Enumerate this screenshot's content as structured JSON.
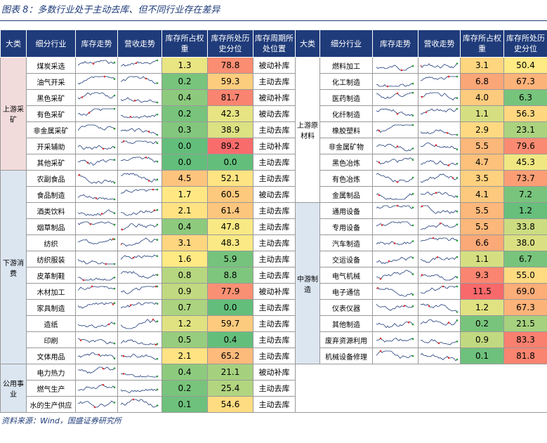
{
  "title": "图表 8：多数行业处于主动去库、但不同行业存在差异",
  "headers_left": [
    "大类",
    "细分行业",
    "库存走势",
    "营收走势",
    "库存所占权重",
    "库存所处历史分位",
    "库存周期所处位置"
  ],
  "headers_right": [
    "大类",
    "细分行业",
    "库存走势",
    "营收走势",
    "库存所占权重",
    "库存所处历史分位"
  ],
  "left_groups": [
    {
      "name": "上游采矿",
      "rows": [
        [
          "煤炭采选",
          "1.3",
          "78.8",
          "被动补库"
        ],
        [
          "油气开采",
          "0.2",
          "59.3",
          "主动去库"
        ],
        [
          "黑色采矿",
          "0.4",
          "81.7",
          "被动补库"
        ],
        [
          "有色采矿",
          "0.2",
          "42.3",
          "被动去库"
        ],
        [
          "非金属采矿",
          "0.3",
          "38.9",
          "主动去库"
        ],
        [
          "开采辅助",
          "0.0",
          "89.2",
          "主动补库"
        ],
        [
          "其他采矿",
          "0.0",
          "0.0",
          "主动去库"
        ]
      ]
    },
    {
      "name": "下游消费",
      "rows": [
        [
          "农副食品",
          "4.5",
          "52.1",
          "主动去库"
        ],
        [
          "食品制造",
          "1.7",
          "60.5",
          "被动去库"
        ],
        [
          "酒类饮料",
          "2.1",
          "61.4",
          "主动去库"
        ],
        [
          "烟草制品",
          "0.4",
          "47.8",
          "主动去库"
        ],
        [
          "纺织",
          "3.1",
          "48.3",
          "主动去库"
        ],
        [
          "纺织服装",
          "1.6",
          "5.9",
          "主动去库"
        ],
        [
          "皮革制鞋",
          "0.8",
          "8.8",
          "主动去库"
        ],
        [
          "木材加工",
          "0.9",
          "77.9",
          "被动补库"
        ],
        [
          "家具制造",
          "0.7",
          "0.0",
          "主动去库"
        ],
        [
          "造纸",
          "1.2",
          "59.7",
          "主动去库"
        ],
        [
          "印刷",
          "0.5",
          "0.4",
          "主动去库"
        ],
        [
          "文体用品",
          "2.1",
          "65.2",
          "主动去库"
        ]
      ]
    },
    {
      "name": "公用事业",
      "rows": [
        [
          "电力热力",
          "0.4",
          "21.1",
          "被动补库"
        ],
        [
          "燃气生产",
          "0.2",
          "25.4",
          "主动去库"
        ],
        [
          "水的生产供应",
          "0.1",
          "54.6",
          "主动去库"
        ]
      ]
    }
  ],
  "right_groups": [
    {
      "name": "上游原材料",
      "rows": [
        [
          "燃料加工",
          "3.1",
          "50.4"
        ],
        [
          "化工制造",
          "6.8",
          "67.3"
        ],
        [
          "医药制造",
          "4.0",
          "6.3"
        ],
        [
          "化纤制造",
          "1.1",
          "56.3"
        ],
        [
          "橡胶塑料",
          "2.9",
          "23.1"
        ],
        [
          "非金属矿物",
          "5.5",
          "79.6"
        ],
        [
          "黑色冶炼",
          "4.7",
          "45.3"
        ],
        [
          "有色冶炼",
          "3.5",
          "73.7"
        ],
        [
          "金属制品",
          "4.1",
          "7.2"
        ]
      ]
    },
    {
      "name": "中游制造",
      "rows": [
        [
          "通用设备",
          "5.5",
          "1.2"
        ],
        [
          "专用设备",
          "5.5",
          "33.8"
        ],
        [
          "汽车制造",
          "6.6",
          "38.0"
        ],
        [
          "交运设备",
          "1.1",
          "6.7"
        ],
        [
          "电气机械",
          "9.3",
          "55.0"
        ],
        [
          "电子通信",
          "11.5",
          "69.0"
        ],
        [
          "仪表仪器",
          "1.2",
          "67.3"
        ],
        [
          "其他制造",
          "0.2",
          "21.5"
        ],
        [
          "废弃资源利用",
          "0.9",
          "83.3"
        ],
        [
          "机械设备修理",
          "0.1",
          "81.8"
        ]
      ]
    }
  ],
  "source": "资料来源：Wind，国盛证券研究所"
}
